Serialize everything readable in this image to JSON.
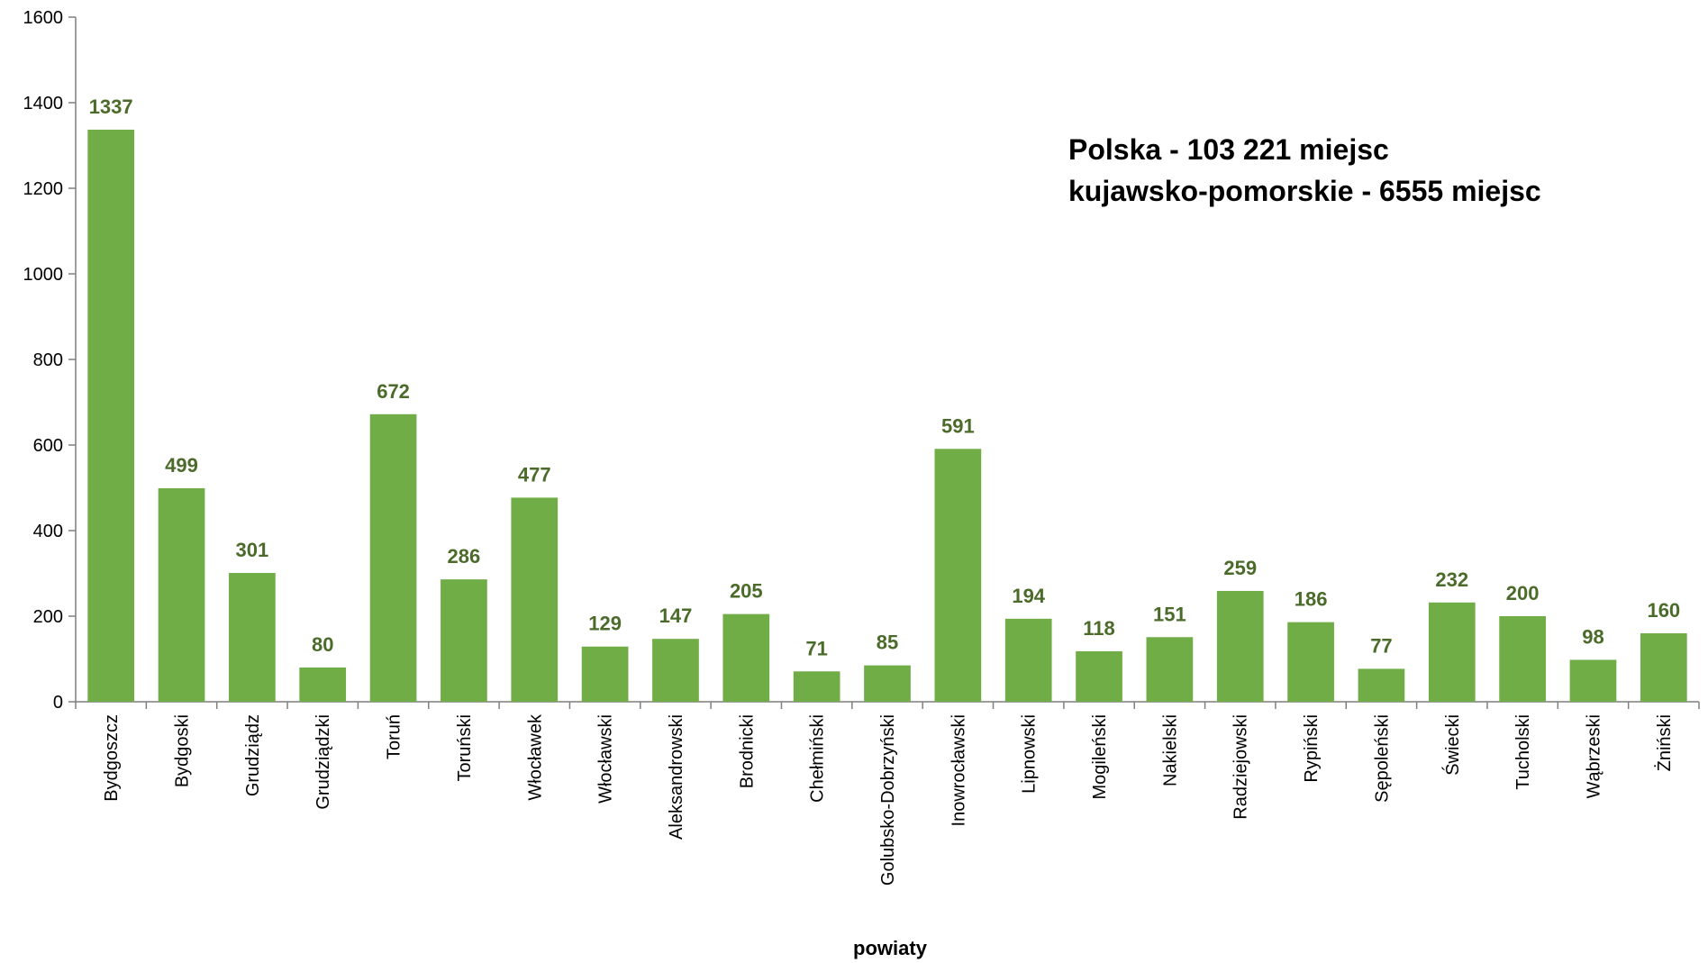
{
  "chart_data": {
    "type": "bar",
    "xlabel": "powiaty",
    "ylim": [
      0,
      1600
    ],
    "yticks": [
      0,
      200,
      400,
      600,
      800,
      1000,
      1200,
      1400,
      1600
    ],
    "grid": false,
    "legend": "none",
    "bar_color": "#70ad47",
    "label_color": "#4b6b2a",
    "categories": [
      "Bydgoszcz",
      "Bydgoski",
      "Grudziądz",
      "Grudziądzki",
      "Toruń",
      "Toruński",
      "Włocławek",
      "Włocławski",
      "Aleksandrowski",
      "Brodnicki",
      "Chełmiński",
      "Golubsko-Dobrzyński",
      "Inowrocławski",
      "Lipnowski",
      "Mogileński",
      "Nakielski",
      "Radziejowski",
      "Rypiński",
      "Sępoleński",
      "Świecki",
      "Tucholski",
      "Wąbrzeski",
      "Żniński"
    ],
    "values": [
      1337,
      499,
      301,
      80,
      672,
      286,
      477,
      129,
      147,
      205,
      71,
      85,
      591,
      194,
      118,
      151,
      259,
      186,
      77,
      232,
      200,
      98,
      160
    ],
    "annotations": [
      "Polska - 103 221 miejsc",
      "kujawsko-pomorskie - 6555 miejsc"
    ]
  }
}
